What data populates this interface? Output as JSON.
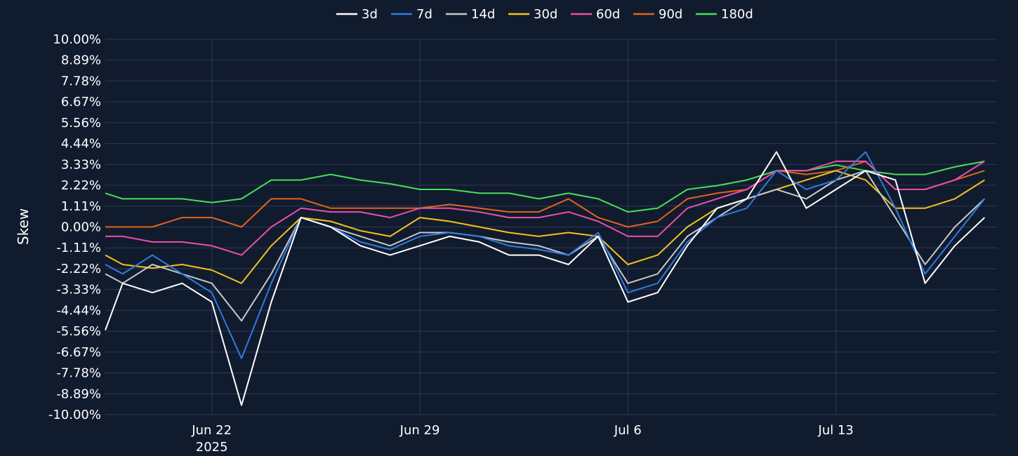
{
  "chart_data": {
    "type": "line",
    "ylabel": "Skew",
    "ylim": [
      -10,
      10
    ],
    "y_ticks": [
      "10.00%",
      "8.89%",
      "7.78%",
      "6.67%",
      "5.56%",
      "4.44%",
      "3.33%",
      "2.22%",
      "1.11%",
      "0.00%",
      "-1.11%",
      "-2.22%",
      "-3.33%",
      "-4.44%",
      "-5.56%",
      "-6.67%",
      "-7.78%",
      "-8.89%",
      "-10.00%"
    ],
    "x_ticks": [
      {
        "label": "Jun 22",
        "sublabel": "2025",
        "date": "2025-06-22"
      },
      {
        "label": "Jun 29",
        "sublabel": "",
        "date": "2025-06-29"
      },
      {
        "label": "Jul 6",
        "sublabel": "",
        "date": "2025-07-06"
      },
      {
        "label": "Jul 13",
        "sublabel": "",
        "date": "2025-07-13"
      }
    ],
    "x_range": [
      "2025-06-18T10:00",
      "2025-07-18T10:00"
    ],
    "legend_position": "top-center",
    "grid": true,
    "series_colors": {
      "3d": "#ffffff",
      "7d": "#2f7be0",
      "14d": "#c8c8c8",
      "30d": "#f2c21b",
      "60d": "#ec4fa6",
      "90d": "#e0641a",
      "180d": "#45e05a"
    },
    "x": [
      "2025-06-18",
      "2025-06-19",
      "2025-06-20",
      "2025-06-21",
      "2025-06-22",
      "2025-06-23",
      "2025-06-24",
      "2025-06-25",
      "2025-06-26",
      "2025-06-27",
      "2025-06-28",
      "2025-06-29",
      "2025-06-30",
      "2025-07-01",
      "2025-07-02",
      "2025-07-03",
      "2025-07-04",
      "2025-07-05",
      "2025-07-06",
      "2025-07-07",
      "2025-07-08",
      "2025-07-09",
      "2025-07-10",
      "2025-07-11",
      "2025-07-12",
      "2025-07-13",
      "2025-07-14",
      "2025-07-15",
      "2025-07-16",
      "2025-07-17",
      "2025-07-18"
    ],
    "series": [
      {
        "name": "3d",
        "values": [
          -5.5,
          -3.0,
          -3.5,
          -3.0,
          -4.0,
          -9.5,
          -4.0,
          0.5,
          0.0,
          -1.0,
          -1.5,
          -1.0,
          -0.5,
          -0.8,
          -1.5,
          -1.5,
          -2.0,
          -0.5,
          -4.0,
          -3.5,
          -1.0,
          1.0,
          1.5,
          4.0,
          1.0,
          2.0,
          3.0,
          2.5,
          -3.0,
          -1.0,
          0.5
        ]
      },
      {
        "name": "7d",
        "values": [
          -2.0,
          -2.5,
          -1.5,
          -2.5,
          -3.5,
          -7.0,
          -3.0,
          0.5,
          0.0,
          -0.8,
          -1.2,
          -0.5,
          -0.3,
          -0.5,
          -1.0,
          -1.2,
          -1.5,
          -0.3,
          -3.5,
          -3.0,
          -0.8,
          0.5,
          1.0,
          3.0,
          2.0,
          2.5,
          4.0,
          1.0,
          -2.5,
          -0.5,
          1.5
        ]
      },
      {
        "name": "14d",
        "values": [
          -2.5,
          -3.0,
          -2.0,
          -2.5,
          -3.0,
          -5.0,
          -2.5,
          0.5,
          0.0,
          -0.5,
          -1.0,
          -0.3,
          -0.3,
          -0.5,
          -0.8,
          -1.0,
          -1.5,
          -0.5,
          -3.0,
          -2.5,
          -0.5,
          0.5,
          1.5,
          2.0,
          1.5,
          2.5,
          3.0,
          0.5,
          -2.0,
          0.0,
          1.5
        ]
      },
      {
        "name": "30d",
        "values": [
          -1.5,
          -2.0,
          -2.2,
          -2.0,
          -2.3,
          -3.0,
          -1.0,
          0.5,
          0.3,
          -0.2,
          -0.5,
          0.5,
          0.3,
          0.0,
          -0.3,
          -0.5,
          -0.3,
          -0.5,
          -2.0,
          -1.5,
          0.0,
          1.0,
          1.5,
          2.0,
          2.5,
          3.0,
          2.5,
          1.0,
          1.0,
          1.5,
          2.5
        ]
      },
      {
        "name": "60d",
        "values": [
          -0.5,
          -0.5,
          -0.8,
          -0.8,
          -1.0,
          -1.5,
          0.0,
          1.0,
          0.8,
          0.8,
          0.5,
          1.0,
          1.0,
          0.8,
          0.5,
          0.5,
          0.8,
          0.3,
          -0.5,
          -0.5,
          1.0,
          1.5,
          2.0,
          3.0,
          3.0,
          3.5,
          3.5,
          2.0,
          2.0,
          2.5,
          3.5
        ]
      },
      {
        "name": "90d",
        "values": [
          0.0,
          0.0,
          0.0,
          0.5,
          0.5,
          0.0,
          1.5,
          1.5,
          1.0,
          1.0,
          1.0,
          1.0,
          1.2,
          1.0,
          0.8,
          0.8,
          1.5,
          0.5,
          0.0,
          0.3,
          1.5,
          1.8,
          2.0,
          3.0,
          2.8,
          3.0,
          3.5,
          2.0,
          2.0,
          2.5,
          3.0
        ]
      },
      {
        "name": "180d",
        "values": [
          1.8,
          1.5,
          1.5,
          1.5,
          1.3,
          1.5,
          2.5,
          2.5,
          2.8,
          2.5,
          2.3,
          2.0,
          2.0,
          1.8,
          1.8,
          1.5,
          1.8,
          1.5,
          0.8,
          1.0,
          2.0,
          2.2,
          2.5,
          3.0,
          3.0,
          3.3,
          3.0,
          2.8,
          2.8,
          3.2,
          3.5
        ]
      }
    ]
  }
}
